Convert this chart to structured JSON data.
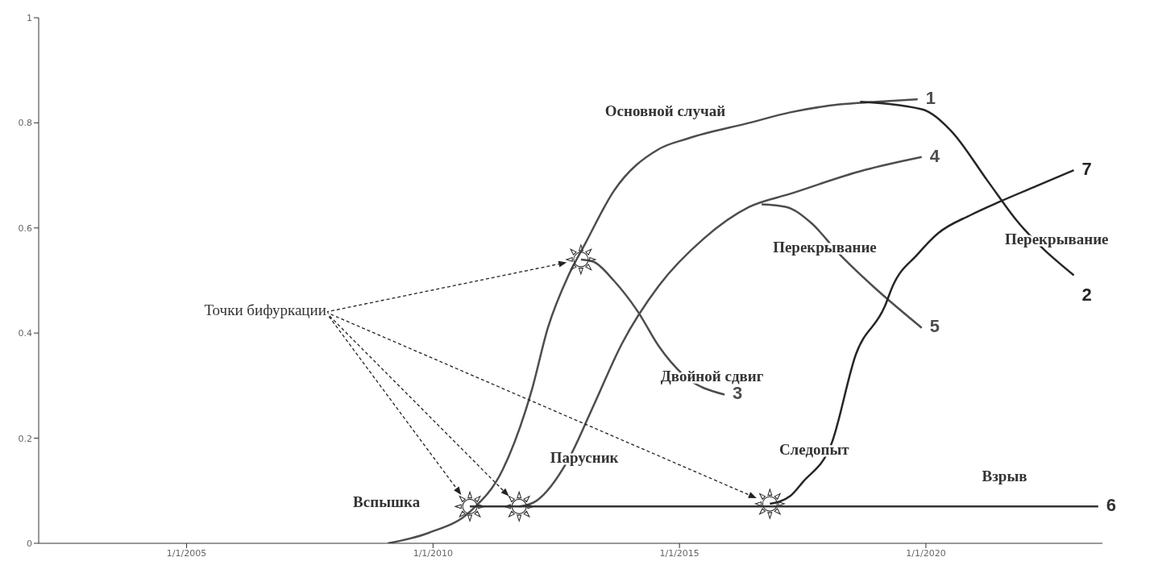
{
  "chart_data": {
    "type": "line",
    "xlim": [
      "2002-01-01",
      "2023-08"
    ],
    "ylim": [
      0,
      1
    ],
    "xticks": [
      {
        "value": "2005-01-01",
        "label": "1/1/2005"
      },
      {
        "value": "2010-01-01",
        "label": "1/1/2010"
      },
      {
        "value": "2015-01-01",
        "label": "1/1/2015"
      },
      {
        "value": "2020-01-01",
        "label": "1/1/2020"
      }
    ],
    "yticks": [
      0,
      0.2,
      0.4,
      0.6,
      0.8,
      1
    ],
    "line_style": "solid",
    "series": [
      {
        "name": "1",
        "color": "#4d4d4d",
        "x": [
          "2009-02",
          "2009-12",
          "2010-10",
          "2011-06",
          "2012-01",
          "2012-05",
          "2012-10",
          "2013-02",
          "2013-09",
          "2014-08",
          "2015-03",
          "2016-06",
          "2017-04",
          "2018-04",
          "2019-01",
          "2019-11"
        ],
        "values": [
          0,
          0.02,
          0.06,
          0.14,
          0.29,
          0.41,
          0.51,
          0.57,
          0.67,
          0.75,
          0.77,
          0.8,
          0.82,
          0.835,
          0.84,
          0.845
        ]
      },
      {
        "name": "2",
        "color": "#262626",
        "x": [
          "2018-09",
          "2019-12",
          "2020-07",
          "2021-04",
          "2021-11",
          "2023-01"
        ],
        "values": [
          0.84,
          0.826,
          0.786,
          0.69,
          0.615,
          0.51
        ]
      },
      {
        "name": "3",
        "color": "#4d4d4d",
        "x": [
          "2013-01",
          "2013-04",
          "2013-09",
          "2014-03",
          "2014-08",
          "2015-02",
          "2015-12"
        ],
        "values": [
          0.54,
          0.536,
          0.5,
          0.44,
          0.375,
          0.32,
          0.283
        ]
      },
      {
        "name": "4",
        "color": "#4d4d4d",
        "x": [
          "2011-10",
          "2012-02",
          "2012-10",
          "2013-04",
          "2013-11",
          "2014-08",
          "2015-07",
          "2016-06",
          "2017-04",
          "2018-10",
          "2019-12"
        ],
        "values": [
          0.07,
          0.08,
          0.16,
          0.26,
          0.38,
          0.49,
          0.58,
          0.64,
          0.665,
          0.71,
          0.735
        ]
      },
      {
        "name": "5",
        "color": "#4d4d4d",
        "x": [
          "2016-09",
          "2017-03",
          "2017-09",
          "2018-04",
          "2018-12",
          "2019-12"
        ],
        "values": [
          0.645,
          0.64,
          0.61,
          0.55,
          0.49,
          0.41
        ]
      },
      {
        "name": "6",
        "color": "#333333",
        "x": [
          "2010-10",
          "2023-07"
        ],
        "values": [
          0.07,
          0.07
        ]
      },
      {
        "name": "7",
        "color": "#262626",
        "x": [
          "2016-11",
          "2017-04",
          "2017-07",
          "2018-02",
          "2018-08",
          "2019-03",
          "2019-05",
          "2019-11",
          "2020-04",
          "2020-12",
          "2021-07",
          "2022-04",
          "2023-01"
        ],
        "values": [
          0.075,
          0.09,
          0.116,
          0.19,
          0.36,
          0.45,
          0.49,
          0.55,
          0.59,
          0.625,
          0.65,
          0.68,
          0.71
        ]
      }
    ],
    "annotations": [
      "Точки бифуркации",
      "Основной случай",
      "Перекрывание",
      "Перекрывание",
      "Двойной сдвиг",
      "Парусник",
      "Следопыт",
      "Вспышка",
      "Взрыв"
    ]
  }
}
